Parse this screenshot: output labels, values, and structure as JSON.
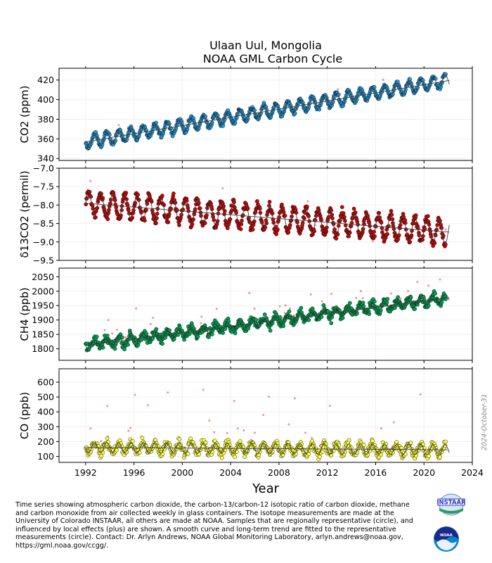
{
  "title": {
    "line1": "Ulaan Uul, Mongolia",
    "line2": "NOAA GML Carbon Cycle"
  },
  "xlabel": "Year",
  "x_ticks": [
    "1992",
    "1996",
    "2000",
    "2004",
    "2008",
    "2012",
    "2016",
    "2020",
    "2024"
  ],
  "date_stamp": "2024-October-31",
  "caption": "Time series showing atmospheric carbon dioxide, the carbon-13/carbon-12 isotopic ratio of carbon dioxide, methane and carbon monoxide from air collected weekly in glass containers.  The isotope measurements are made at the University of Colorado INSTAAR, all others are made at NOAA.  Samples that are regionally representative (circle), and influenced by local effects (plus) are shown. A smooth curve and long-term trend are fitted to the representative measurements (circle).  Contact:  Dr. Arlyn Andrews, NOAA Global Monitoring Laboratory, arlyn.andrews@noaa.gov, https://gml.noaa.gov/ccgg/.",
  "logos": {
    "instaar": "INSTAAR",
    "noaa": "NOAA"
  },
  "chart_data": [
    {
      "type": "scatter",
      "ylabel": "CO2 (ppm)",
      "ylim": [
        338,
        432
      ],
      "xlim": [
        1989.8,
        2024
      ],
      "yticks": [
        340,
        360,
        380,
        400,
        420
      ],
      "color": "#1f9be0",
      "start": 1992.0,
      "end": 2021.8,
      "base": 357.0,
      "trend": 2.08,
      "seasonal_amp": 6.5,
      "curve_shift": 0,
      "samples_per_year": 22,
      "noise": 1.6,
      "flagged": {
        "color": "#ff7070",
        "offset": [
          2,
          9
        ]
      }
    },
    {
      "type": "scatter",
      "ylabel": "δ13CO2 (permil)",
      "ylim": [
        -9.5,
        -7.0
      ],
      "xlim": [
        1989.8,
        2024
      ],
      "yticks": [
        -7.0,
        -7.5,
        -8.0,
        -8.5,
        -9.0,
        -9.5
      ],
      "color": "#cc0000",
      "start": 1992.0,
      "end": 2021.8,
      "base": -7.95,
      "trend": -0.026,
      "seasonal_amp": 0.33,
      "curve_shift": 0,
      "samples_per_year": 22,
      "noise": 0.08,
      "flagged": {
        "color": "#ff7070",
        "offset": [
          -0.5,
          0.3
        ]
      }
    },
    {
      "type": "scatter",
      "ylabel": "CH4 (ppb)",
      "ylim": [
        1760,
        2080
      ],
      "xlim": [
        1989.8,
        2024
      ],
      "yticks": [
        1800,
        1850,
        1900,
        1950,
        2000,
        2050
      ],
      "color": "#00a050",
      "start": 1992.0,
      "end": 2021.8,
      "base": 1812,
      "trend": 5.5,
      "seasonal_amp": 15,
      "curve_shift": 0,
      "samples_per_year": 22,
      "noise": 12,
      "flagged": {
        "color": "#ff7070",
        "offset": [
          20,
          120
        ]
      }
    },
    {
      "type": "scatter",
      "ylabel": "CO (ppb)",
      "ylim": [
        60,
        690
      ],
      "xlim": [
        1989.8,
        2024
      ],
      "yticks": [
        100,
        200,
        300,
        400,
        500,
        600
      ],
      "color": "#ffff40",
      "start": 1992.0,
      "end": 2021.8,
      "base": 160,
      "trend": -0.5,
      "seasonal_amp": 35,
      "curve_shift": 0,
      "samples_per_year": 22,
      "noise": 22,
      "flagged": {
        "color": "#ff7070",
        "offset": [
          40,
          400
        ]
      }
    }
  ]
}
